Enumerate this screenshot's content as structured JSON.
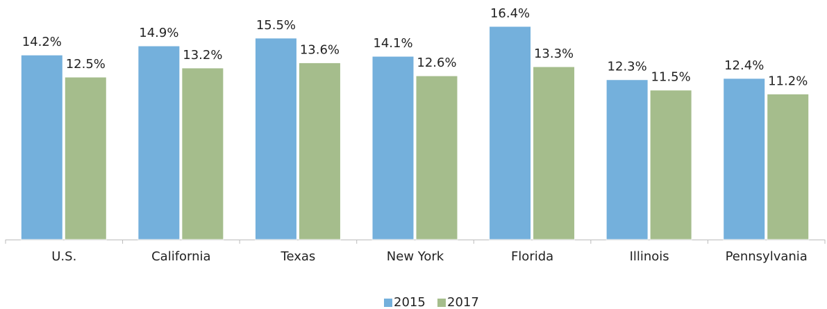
{
  "chart_data": {
    "type": "bar",
    "categories": [
      "U.S.",
      "California",
      "Texas",
      "New York",
      "Florida",
      "Illinois",
      "Pennsylvania"
    ],
    "series": [
      {
        "name": "2015",
        "color": "#74b0dc",
        "values": [
          14.2,
          14.9,
          15.5,
          14.1,
          16.4,
          12.3,
          12.4
        ],
        "value_labels": [
          "14.2%",
          "14.9%",
          "15.5%",
          "14.1%",
          "16.4%",
          "12.3%",
          "12.4%"
        ]
      },
      {
        "name": "2017",
        "color": "#a5bd8c",
        "values": [
          12.5,
          13.2,
          13.6,
          12.6,
          13.3,
          11.5,
          11.2
        ],
        "value_labels": [
          "12.5%",
          "13.2%",
          "13.6%",
          "12.6%",
          "13.3%",
          "11.5%",
          "11.2%"
        ]
      }
    ],
    "legend": "bottom"
  }
}
